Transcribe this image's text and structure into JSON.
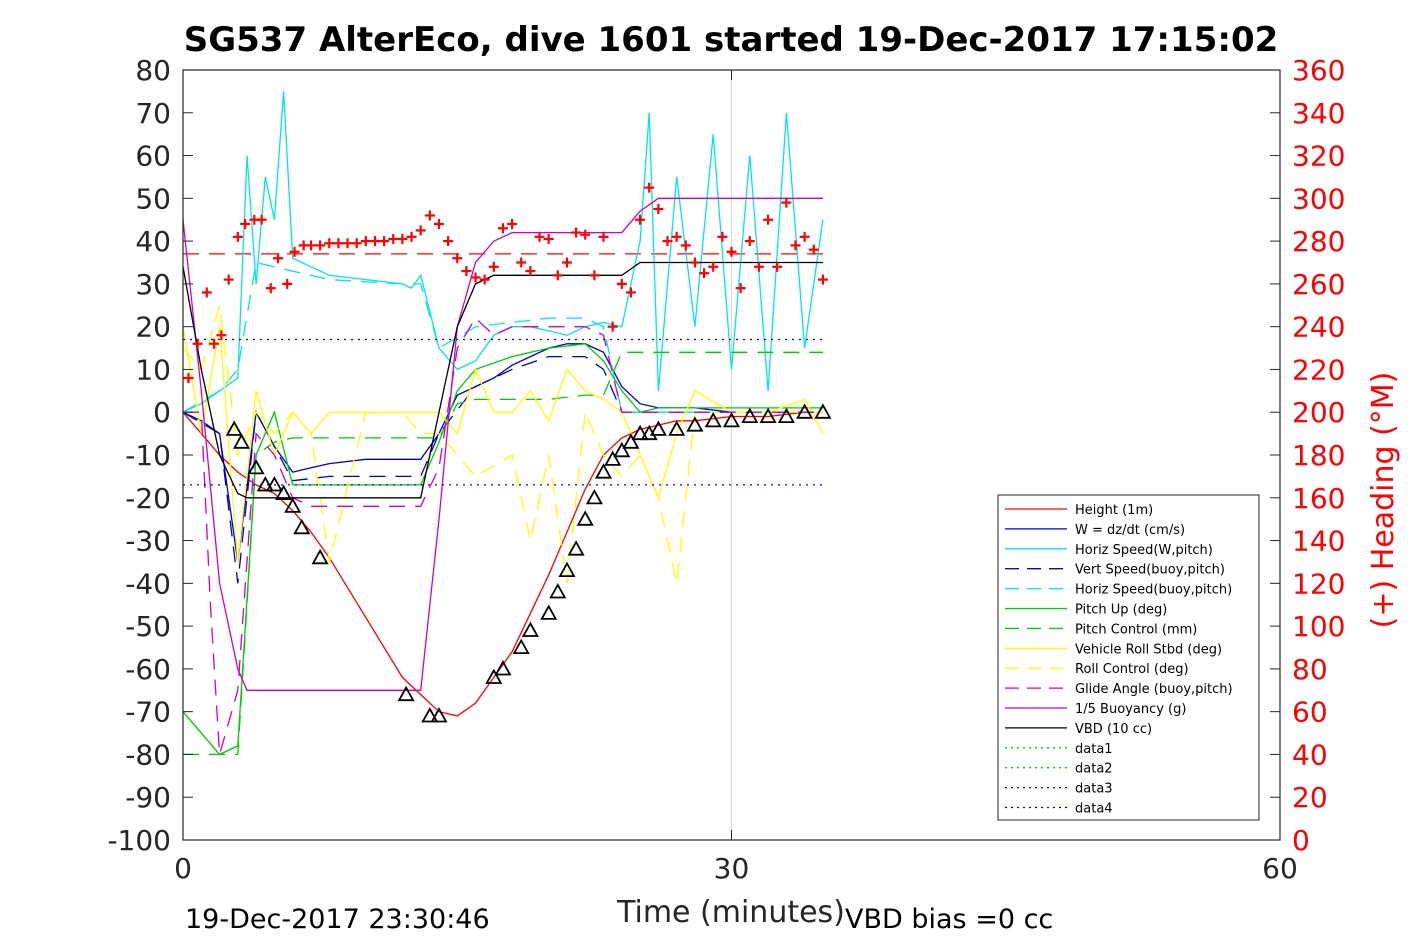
{
  "chart_data": {
    "type": "line",
    "title": "SG537 AlterEco, dive 1601 started 19-Dec-2017 17:15:02",
    "xlabel": "Time (minutes)",
    "ylabel_right": "(+) Heading (°M)",
    "xlim": [
      0,
      60
    ],
    "ylim_left": [
      -100,
      80
    ],
    "ylim_right": [
      0,
      360
    ],
    "x_ticks": [
      "0",
      "30",
      "60"
    ],
    "y_ticks_left": [
      "80",
      "70",
      "60",
      "50",
      "40",
      "30",
      "20",
      "10",
      "0",
      "-10",
      "-20",
      "-30",
      "-40",
      "-50",
      "-60",
      "-70",
      "-80",
      "-90",
      "-100"
    ],
    "y_ticks_right": [
      "360",
      "340",
      "320",
      "300",
      "280",
      "260",
      "240",
      "220",
      "200",
      "180",
      "160",
      "140",
      "120",
      "100",
      "80",
      "60",
      "40",
      "20",
      "0"
    ],
    "grid_x_at": [
      30
    ],
    "footer_left": "19-Dec-2017 23:30:46",
    "footer_right": "VBD bias =0 cc",
    "legend_position": "lower-right",
    "legend_entries": [
      "Height (1m)",
      "W = dz/dt (cm/s)",
      "Horiz Speed(W,pitch)",
      "Vert Speed(buoy,pitch)",
      "Horiz Speed(buoy,pitch)",
      "Pitch Up (deg)",
      "Pitch Control (mm)",
      "Vehicle Roll Stbd (deg)",
      "Roll Control (deg)",
      "Glide Angle (buoy,pitch)",
      "1/5 Buoyancy (g)",
      "VBD (10 cc)",
      "data1",
      "data2",
      "data3",
      "data4"
    ],
    "series": [
      {
        "name": "Height (1m)",
        "color": "#ff0000",
        "style": "solid",
        "axis": "left",
        "x": [
          0,
          1,
          2,
          3,
          4,
          5,
          6,
          7,
          8,
          12,
          13,
          14,
          15,
          16,
          17,
          18,
          19,
          20,
          21,
          22,
          23,
          24,
          25,
          26,
          27,
          28,
          30,
          32,
          34,
          35
        ],
        "y": [
          0,
          -5,
          -10,
          -14,
          -17,
          -19,
          -23,
          -28,
          -34,
          -62,
          -66,
          -70,
          -71,
          -68,
          -62,
          -56,
          -47,
          -38,
          -28,
          -18,
          -10,
          -6,
          -4,
          -3,
          -2,
          -2,
          -1,
          -1,
          0,
          0
        ]
      },
      {
        "name": "W = dz/dt (cm/s)",
        "color": "#0000cc",
        "style": "solid",
        "axis": "left",
        "x": [
          0,
          1,
          2,
          3,
          4,
          5,
          6,
          7,
          8,
          10,
          12,
          13,
          14,
          15,
          16,
          17,
          18,
          19,
          20,
          21,
          22,
          23,
          24,
          25,
          26,
          28,
          30,
          32,
          35
        ],
        "y": [
          0,
          -2,
          -5,
          -35,
          0,
          -8,
          -14,
          -13,
          -12,
          -11,
          -11,
          -11,
          -5,
          4,
          6,
          8,
          11,
          13,
          15,
          16,
          16,
          14,
          6,
          2,
          1,
          1,
          0,
          0,
          0
        ]
      },
      {
        "name": "Horiz Speed(W,pitch)",
        "color": "#00e5e5",
        "style": "solid",
        "axis": "left",
        "x": [
          0,
          1,
          2,
          3,
          3.5,
          4,
          4.5,
          5,
          5.5,
          6,
          7,
          8,
          10,
          12,
          12.5,
          13,
          14,
          15,
          16,
          17,
          18,
          19,
          20,
          21,
          22,
          23,
          24,
          25,
          25.5,
          26,
          27,
          28,
          29,
          30,
          31,
          32,
          33,
          34,
          35
        ],
        "y": [
          0,
          2,
          5,
          8,
          60,
          30,
          55,
          45,
          75,
          36,
          34,
          32,
          31,
          30,
          29,
          32,
          15,
          10,
          12,
          18,
          20,
          20,
          19,
          18,
          20,
          21,
          20,
          40,
          70,
          5,
          55,
          20,
          65,
          10,
          60,
          5,
          70,
          15,
          45
        ]
      },
      {
        "name": "Vert Speed(buoy,pitch)",
        "color": "#0000cc",
        "style": "dashed",
        "axis": "left",
        "x": [
          0,
          2,
          3,
          4,
          6,
          8,
          12,
          13,
          14,
          16,
          18,
          20,
          22,
          23,
          24,
          35
        ],
        "y": [
          0,
          -5,
          -40,
          0,
          -16,
          -15,
          -15,
          -15,
          -5,
          6,
          10,
          13,
          13,
          10,
          0,
          0
        ]
      },
      {
        "name": "Horiz Speed(buoy,pitch)",
        "color": "#00e5e5",
        "style": "dashed",
        "axis": "left",
        "x": [
          0,
          2,
          3,
          4,
          6,
          8,
          12,
          13,
          14,
          16,
          18,
          20,
          22,
          23,
          24,
          35
        ],
        "y": [
          0,
          5,
          10,
          35,
          33,
          31,
          30,
          30,
          15,
          20,
          21,
          22,
          22,
          20,
          0,
          0
        ]
      },
      {
        "name": "Pitch Up (deg)",
        "color": "#00cc00",
        "style": "solid",
        "axis": "left",
        "x": [
          0,
          1,
          2,
          3,
          4,
          5,
          6,
          8,
          10,
          12,
          13,
          14,
          15,
          16,
          18,
          20,
          22,
          23,
          24,
          25,
          26,
          28,
          30,
          32,
          35
        ],
        "y": [
          -70,
          -75,
          -80,
          -78,
          -10,
          0,
          -17,
          -17,
          -17,
          -17,
          -17,
          -7,
          5,
          10,
          13,
          15,
          16,
          12,
          5,
          0,
          1,
          1,
          1,
          1,
          1
        ]
      },
      {
        "name": "Pitch Control (mm)",
        "color": "#00cc00",
        "style": "dashed",
        "axis": "left",
        "x": [
          0,
          1,
          2,
          3,
          4,
          5,
          6,
          8,
          10,
          12,
          13,
          14,
          15,
          16,
          18,
          20,
          22,
          23,
          24,
          25,
          35
        ],
        "y": [
          -80,
          -80,
          -80,
          -80,
          -10,
          -7,
          -6,
          -6,
          -6,
          -6,
          -6,
          -6,
          2,
          3,
          3,
          3,
          4,
          4,
          14,
          14,
          14
        ]
      },
      {
        "name": "Vehicle Roll Stbd (deg)",
        "color": "#ffff00",
        "style": "solid",
        "axis": "left",
        "x": [
          0,
          1,
          2,
          3,
          4,
          5,
          6,
          7,
          8,
          10,
          12,
          13,
          14,
          15,
          16,
          17,
          18,
          19,
          20,
          21,
          22,
          23,
          24,
          25,
          26,
          27,
          28,
          30,
          32,
          34,
          35
        ],
        "y": [
          20,
          -5,
          20,
          -35,
          5,
          -10,
          0,
          -5,
          0,
          0,
          0,
          0,
          0,
          -5,
          10,
          0,
          0,
          5,
          -2,
          10,
          5,
          3,
          0,
          -10,
          -20,
          -5,
          5,
          0,
          0,
          3,
          -5
        ]
      },
      {
        "name": "Roll Control (deg)",
        "color": "#ffff00",
        "style": "dashed",
        "axis": "left",
        "x": [
          0,
          1,
          2,
          3,
          4,
          5,
          6,
          7,
          8,
          10,
          12,
          13,
          14,
          15,
          16,
          18,
          19,
          20,
          21,
          22,
          23,
          24,
          25,
          26,
          27,
          28,
          30,
          32,
          35
        ],
        "y": [
          15,
          10,
          25,
          -10,
          0,
          -5,
          0,
          -5,
          -35,
          0,
          0,
          -5,
          -5,
          -10,
          -15,
          -10,
          -30,
          -10,
          -40,
          0,
          -10,
          -15,
          -10,
          -20,
          -40,
          0,
          0,
          0,
          0
        ]
      },
      {
        "name": "Glide Angle (buoy,pitch)",
        "color": "#cc00cc",
        "style": "dashed",
        "axis": "left",
        "x": [
          0,
          1,
          1.5,
          2,
          3,
          4,
          5,
          6,
          7,
          8,
          12,
          13,
          14,
          15,
          16,
          17,
          18,
          20,
          22,
          23,
          24,
          35
        ],
        "y": [
          0,
          0,
          -45,
          -80,
          -65,
          -5,
          -10,
          -20,
          -22,
          -22,
          -22,
          -22,
          -13,
          15,
          22,
          18,
          20,
          20,
          20,
          18,
          0,
          0
        ]
      },
      {
        "name": "1/5 Buoyancy (g)",
        "color": "#cc00cc",
        "style": "solid",
        "axis": "left",
        "x": [
          0,
          1,
          2,
          3,
          3.5,
          5,
          8,
          10,
          12,
          12.5,
          13,
          14,
          15,
          16,
          17,
          18,
          19,
          20,
          21,
          22,
          23,
          24,
          25,
          26,
          28,
          30,
          32,
          35
        ],
        "y": [
          45,
          5,
          -40,
          -60,
          -65,
          -65,
          -65,
          -65,
          -65,
          -65,
          -65,
          -25,
          20,
          35,
          40,
          42,
          42,
          42,
          42,
          42,
          42,
          42,
          47,
          50,
          50,
          50,
          50,
          50
        ]
      },
      {
        "name": "VBD (10 cc)",
        "color": "#000000",
        "style": "solid",
        "axis": "left",
        "x": [
          0,
          1,
          2,
          3,
          3.5,
          5,
          8,
          10,
          12,
          12.5,
          13,
          14,
          15,
          16,
          17,
          18,
          19,
          20,
          21,
          22,
          23,
          24,
          25,
          26,
          28,
          30,
          32,
          35
        ],
        "y": [
          34,
          10,
          -10,
          -19,
          -20,
          -20,
          -20,
          -20,
          -20,
          -20,
          -20,
          0,
          20,
          30,
          32,
          32,
          32,
          32,
          32,
          32,
          32,
          32,
          35,
          35,
          35,
          35,
          35,
          35
        ]
      },
      {
        "name": "data1",
        "color": "#00cc00",
        "style": "dotted",
        "axis": "left",
        "x": [],
        "y": []
      },
      {
        "name": "data2",
        "color": "#00cc00",
        "style": "dotted",
        "axis": "left",
        "x": [],
        "y": []
      },
      {
        "name": "data3",
        "color": "#0000cc",
        "style": "dotted",
        "axis": "left",
        "x": [
          0,
          35
        ],
        "y": [
          17,
          17
        ]
      },
      {
        "name": "data4",
        "color": "#0000cc",
        "style": "dotted",
        "axis": "left",
        "x": [
          0,
          35
        ],
        "y": [
          -17,
          -17
        ]
      }
    ],
    "reference_lines": [
      {
        "color": "#ff0000",
        "style": "dashed",
        "axis": "left",
        "x": [
          0,
          35
        ],
        "y": [
          37,
          37
        ]
      }
    ],
    "heading_points": {
      "color": "#ff0000",
      "marker": "+",
      "axis": "right",
      "x": [
        0.3,
        0.8,
        1.3,
        1.7,
        2.1,
        2.5,
        3,
        3.4,
        3.9,
        4.3,
        4.8,
        5.2,
        5.7,
        6.1,
        6.6,
        7,
        7.5,
        8,
        8.5,
        9,
        9.5,
        10,
        10.5,
        11,
        11.5,
        12,
        12.5,
        13,
        13.5,
        14,
        14.5,
        15,
        15.5,
        16,
        16.5,
        17,
        17.5,
        18,
        18.5,
        19,
        19.5,
        20,
        20.5,
        21,
        21.5,
        22,
        22.5,
        23,
        23.5,
        24,
        24.5,
        25,
        25.5,
        26,
        26.5,
        27,
        27.5,
        28,
        28.5,
        29,
        29.5,
        30,
        30.5,
        31,
        31.5,
        32,
        32.5,
        33,
        33.5,
        34,
        34.5,
        35
      ],
      "y": [
        216,
        232,
        256,
        232,
        236,
        262,
        282,
        288,
        290,
        290,
        258,
        272,
        260,
        275,
        278,
        278,
        278,
        279,
        279,
        279,
        279,
        280,
        280,
        280,
        281,
        281,
        282,
        285,
        292,
        288,
        280,
        272,
        266,
        263,
        262,
        268,
        286,
        288,
        270,
        266,
        282,
        281,
        264,
        270,
        284,
        283,
        264,
        282,
        240,
        260,
        256,
        290,
        305,
        295,
        280,
        282,
        278,
        270,
        265,
        268,
        282,
        275,
        258,
        280,
        268,
        290,
        268,
        298,
        278,
        282,
        276,
        262
      ]
    },
    "depth_markers": {
      "color": "#000000",
      "marker": "triangle",
      "axis": "left",
      "x": [
        2.8,
        3.2,
        4.0,
        4.5,
        5.0,
        5.5,
        6.0,
        6.5,
        7.5,
        12.2,
        13.5,
        14.0,
        17.0,
        17.5,
        18.5,
        19.0,
        20.0,
        20.5,
        21.0,
        21.5,
        22.0,
        22.5,
        23.0,
        23.5,
        24.0,
        24.5,
        25.0,
        25.5,
        26.0,
        27.0,
        28.0,
        29.0,
        30.0,
        31.0,
        32.0,
        33.0,
        34.0,
        35.0
      ],
      "y": [
        -4,
        -7,
        -13,
        -17,
        -17,
        -19,
        -22,
        -27,
        -34,
        -66,
        -71,
        -71,
        -62,
        -60,
        -55,
        -51,
        -47,
        -42,
        -37,
        -32,
        -25,
        -20,
        -14,
        -11,
        -9,
        -7,
        -5,
        -5,
        -4,
        -4,
        -3,
        -2,
        -2,
        -1,
        -1,
        -1,
        0,
        0
      ]
    }
  }
}
